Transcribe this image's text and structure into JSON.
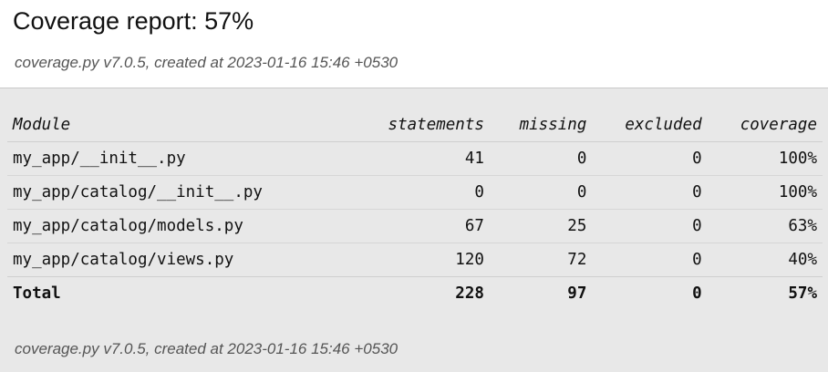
{
  "header": {
    "title": "Coverage report: 57%",
    "created": "coverage.py v7.0.5, created at 2023-01-16 15:46 +0530"
  },
  "table": {
    "columns": [
      "Module",
      "statements",
      "missing",
      "excluded",
      "coverage"
    ],
    "rows": [
      {
        "module": "my_app/__init__.py",
        "statements": "41",
        "missing": "0",
        "excluded": "0",
        "coverage": "100%"
      },
      {
        "module": "my_app/catalog/__init__.py",
        "statements": "0",
        "missing": "0",
        "excluded": "0",
        "coverage": "100%"
      },
      {
        "module": "my_app/catalog/models.py",
        "statements": "67",
        "missing": "25",
        "excluded": "0",
        "coverage": "63%"
      },
      {
        "module": "my_app/catalog/views.py",
        "statements": "120",
        "missing": "72",
        "excluded": "0",
        "coverage": "40%"
      }
    ],
    "total": {
      "label": "Total",
      "statements": "228",
      "missing": "97",
      "excluded": "0",
      "coverage": "57%"
    }
  },
  "footer": {
    "created": "coverage.py v7.0.5, created at 2023-01-16 15:46 +0530"
  }
}
